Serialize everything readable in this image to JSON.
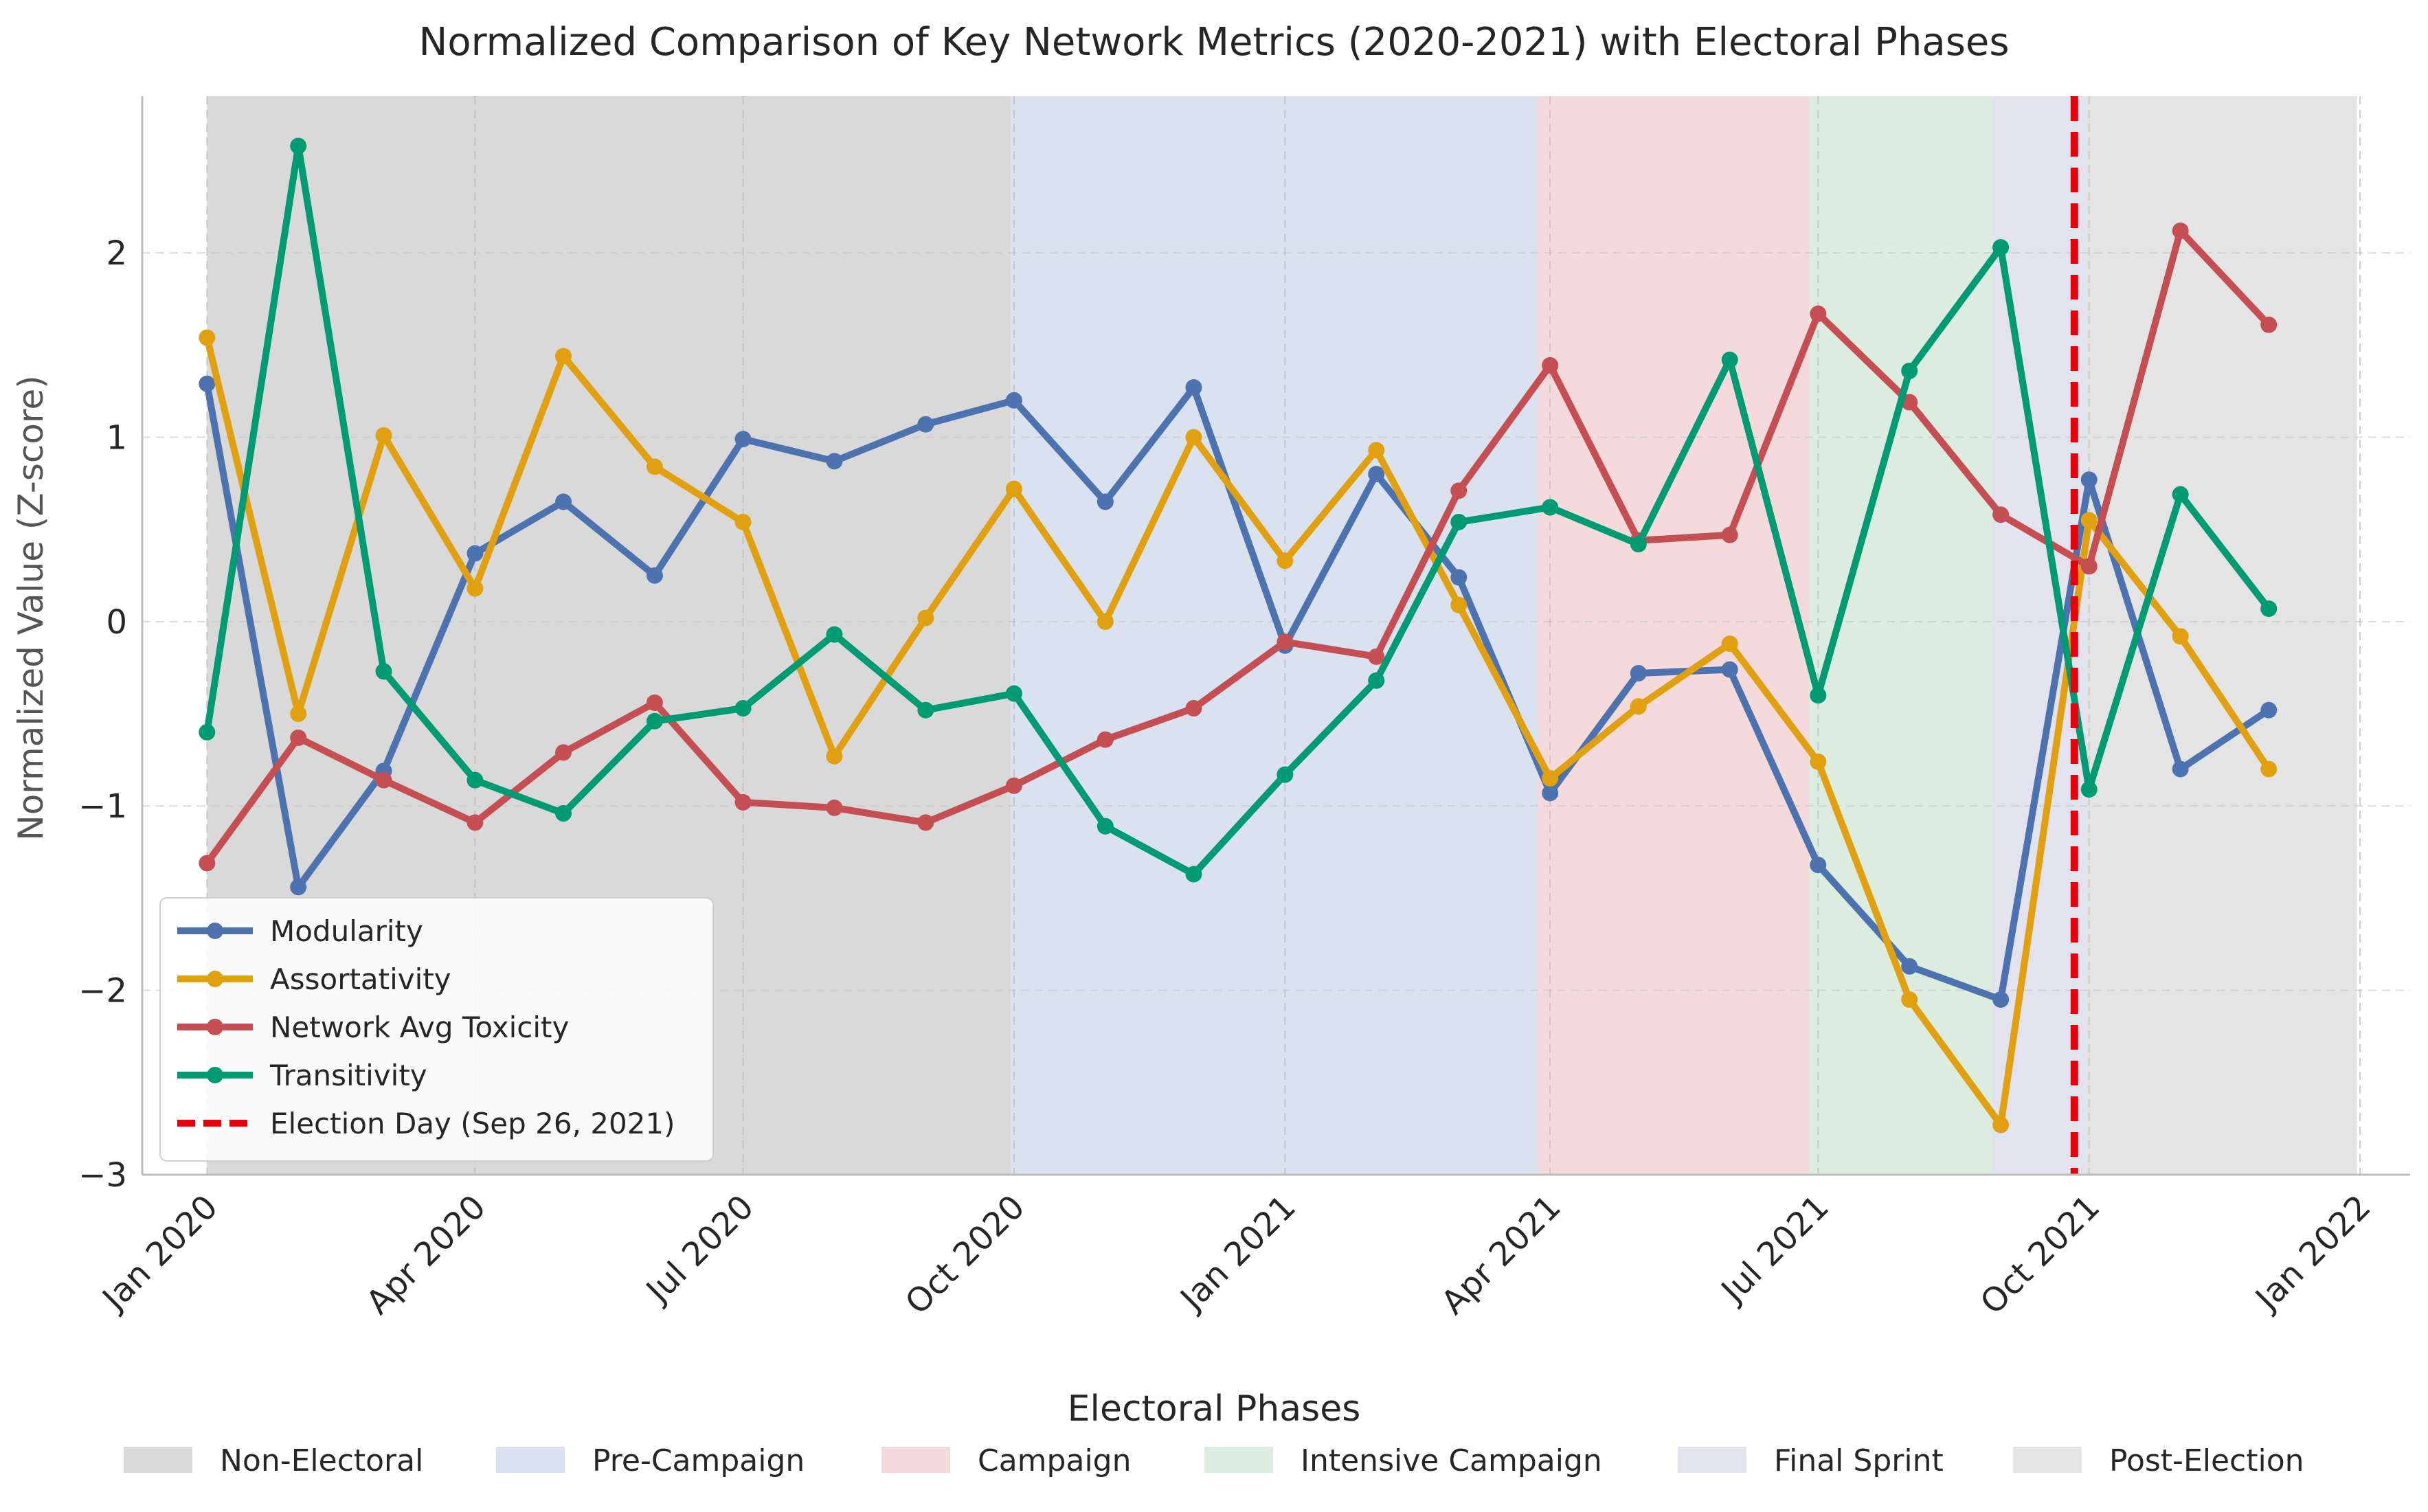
{
  "chart_data": {
    "type": "line",
    "title": "Normalized Comparison of Key Network Metrics (2020-2021) with Electoral Phases",
    "xlabel": "",
    "ylabel": "Normalized Value (Z-score)",
    "x_axis": {
      "type": "date",
      "min": "2019-12-10",
      "max": "2022-01-18"
    },
    "ylim": [
      -3,
      2.85
    ],
    "y_ticks": [
      -3,
      -2,
      -1,
      0,
      1,
      2
    ],
    "y_tick_labels": [
      "−3",
      "−2",
      "−1",
      "0",
      "1",
      "2"
    ],
    "x_ticks": [
      "2020-01-01",
      "2020-04-01",
      "2020-07-01",
      "2020-10-01",
      "2021-01-01",
      "2021-04-01",
      "2021-07-01",
      "2021-10-01",
      "2022-01-01"
    ],
    "x_tick_labels": [
      "Jan 2020",
      "Apr 2020",
      "Jul 2020",
      "Oct 2020",
      "Jan 2021",
      "Apr 2021",
      "Jul 2021",
      "Oct 2021",
      "Jan 2022"
    ],
    "grid": true,
    "legend_position": "bottom-left",
    "x": [
      "2020-01-01",
      "2020-02-01",
      "2020-03-01",
      "2020-04-01",
      "2020-05-01",
      "2020-06-01",
      "2020-07-01",
      "2020-08-01",
      "2020-09-01",
      "2020-10-01",
      "2020-11-01",
      "2020-12-01",
      "2021-01-01",
      "2021-02-01",
      "2021-03-01",
      "2021-04-01",
      "2021-05-01",
      "2021-06-01",
      "2021-07-01",
      "2021-08-01",
      "2021-09-01",
      "2021-10-01",
      "2021-11-01",
      "2021-12-01"
    ],
    "series": [
      {
        "name": "Modularity",
        "color": "#4c72b0",
        "values": [
          1.29,
          -1.44,
          -0.81,
          0.37,
          0.65,
          0.25,
          0.99,
          0.87,
          1.07,
          1.2,
          0.65,
          1.27,
          -0.13,
          0.8,
          0.24,
          -0.93,
          -0.28,
          -0.26,
          -1.32,
          -1.87,
          -2.05,
          0.77,
          -0.8,
          -0.48
        ]
      },
      {
        "name": "Assortativity",
        "color": "#e1a00f",
        "values": [
          1.54,
          -0.5,
          1.01,
          0.18,
          1.44,
          0.84,
          0.54,
          -0.73,
          0.02,
          0.72,
          0.0,
          1.0,
          0.33,
          0.93,
          0.09,
          -0.85,
          -0.46,
          -0.12,
          -0.76,
          -2.05,
          -2.73,
          0.55,
          -0.08,
          -0.8
        ]
      },
      {
        "name": "Network Avg Toxicity",
        "color": "#c44e52",
        "values": [
          -1.31,
          -0.63,
          -0.86,
          -1.09,
          -0.71,
          -0.44,
          -0.98,
          -1.01,
          -1.09,
          -0.89,
          -0.64,
          -0.47,
          -0.11,
          -0.19,
          0.71,
          1.39,
          0.44,
          0.47,
          1.67,
          1.19,
          0.58,
          0.3,
          2.12,
          1.61
        ]
      },
      {
        "name": "Transitivity",
        "color": "#009b72",
        "values": [
          -0.6,
          2.58,
          -0.27,
          -0.86,
          -1.04,
          -0.54,
          -0.47,
          -0.07,
          -0.48,
          -0.39,
          -1.11,
          -1.37,
          -0.83,
          -0.32,
          0.54,
          0.62,
          0.42,
          1.42,
          -0.4,
          1.36,
          2.03,
          -0.91,
          0.69,
          0.07
        ]
      }
    ],
    "election_day": {
      "date": "2021-09-26",
      "label": "Election Day (Sep 26, 2021)",
      "color": "#e8000b"
    },
    "phases_title": "Electoral Phases",
    "phases": [
      {
        "name": "Non-Electoral",
        "start": "2020-01-01",
        "end": "2020-09-30",
        "color": "#d9d9d9",
        "swatch": "#d9d9d9"
      },
      {
        "name": "Pre-Campaign",
        "start": "2020-09-30",
        "end": "2021-03-28",
        "color": "#dae1ef",
        "swatch": "#dae1ef"
      },
      {
        "name": "Campaign",
        "start": "2021-03-28",
        "end": "2021-06-28",
        "color": "#f4dada",
        "swatch": "#f4dada"
      },
      {
        "name": "Intensive Campaign",
        "start": "2021-06-28",
        "end": "2021-08-29",
        "color": "#dcecdf",
        "swatch": "#dcecdf"
      },
      {
        "name": "Final Sprint",
        "start": "2021-08-29",
        "end": "2021-09-30",
        "color": "#e3e2ef",
        "swatch": "#e3e2ef"
      },
      {
        "name": "Post-Election",
        "start": "2021-09-30",
        "end": "2021-12-31",
        "color": "#e4e4e4",
        "swatch": "#e4e4e4"
      }
    ]
  }
}
